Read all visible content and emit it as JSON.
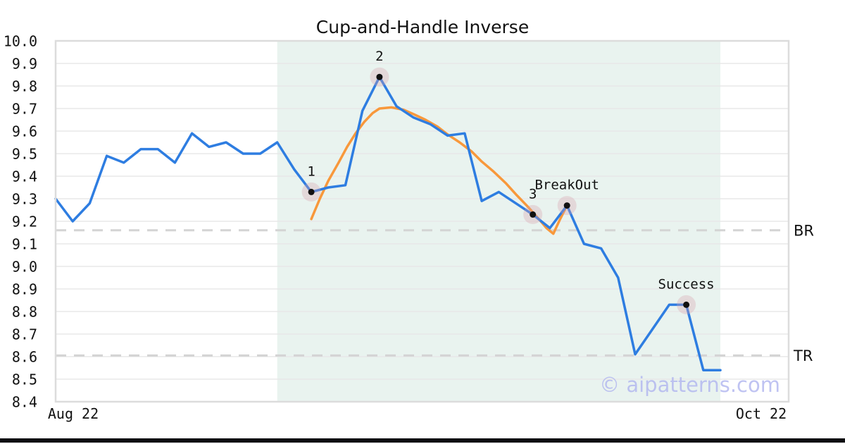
{
  "title": "Cup-and-Handle Inverse",
  "watermark": "© aipatterns.com",
  "chart_data": {
    "type": "line",
    "title": "Cup-and-Handle Inverse",
    "ylim": [
      8.4,
      10.0
    ],
    "y_tick_step": 0.1,
    "y_tick_labels": [
      "10.0",
      "9.9",
      "9.8",
      "9.7",
      "9.6",
      "9.5",
      "9.4",
      "9.3",
      "9.2",
      "9.1",
      "9.0",
      "8.9",
      "8.8",
      "8.7",
      "8.6",
      "8.5",
      "8.4"
    ],
    "x_tick_labels": [
      "Aug 22",
      "Oct 22"
    ],
    "grid": true,
    "legend": false,
    "series": [
      {
        "name": "price",
        "type": "line",
        "color": "#2e7de1",
        "values": [
          9.3,
          9.2,
          9.28,
          9.49,
          9.46,
          9.52,
          9.52,
          9.46,
          9.59,
          9.53,
          9.55,
          9.5,
          9.5,
          9.55,
          9.43,
          9.33,
          9.35,
          9.36,
          9.69,
          9.84,
          9.71,
          9.66,
          9.63,
          9.58,
          9.59,
          9.29,
          9.33,
          9.28,
          9.23,
          9.17,
          9.27,
          9.1,
          9.08,
          8.95,
          8.61,
          8.72,
          8.83,
          8.83,
          8.54,
          8.54
        ]
      },
      {
        "name": "pattern",
        "type": "line",
        "color": "#f8983b",
        "points": [
          [
            15.0,
            9.21
          ],
          [
            15.5,
            9.3
          ],
          [
            16.0,
            9.38
          ],
          [
            16.6,
            9.46
          ],
          [
            17.1,
            9.53
          ],
          [
            17.6,
            9.59
          ],
          [
            18.1,
            9.64
          ],
          [
            18.6,
            9.68
          ],
          [
            19.0,
            9.7
          ],
          [
            19.7,
            9.705
          ],
          [
            20.4,
            9.695
          ],
          [
            21.0,
            9.675
          ],
          [
            21.7,
            9.65
          ],
          [
            22.4,
            9.62
          ],
          [
            23.0,
            9.585
          ],
          [
            23.7,
            9.55
          ],
          [
            24.4,
            9.51
          ],
          [
            25.0,
            9.465
          ],
          [
            25.7,
            9.42
          ],
          [
            26.4,
            9.37
          ],
          [
            27.0,
            9.32
          ],
          [
            27.7,
            9.265
          ],
          [
            28.35,
            9.21
          ],
          [
            28.8,
            9.17
          ],
          [
            29.2,
            9.145
          ],
          [
            29.6,
            9.21
          ],
          [
            30.0,
            9.27
          ]
        ]
      }
    ],
    "levels": [
      {
        "label": "BR",
        "value": 9.16
      },
      {
        "label": "TR",
        "value": 8.605
      }
    ],
    "annotations": [
      {
        "label": "1",
        "index": 15,
        "value": 9.33
      },
      {
        "label": "2",
        "index": 19,
        "value": 9.84
      },
      {
        "label": "3",
        "index": 28,
        "value": 9.23
      },
      {
        "label": "BreakOut",
        "index": 30,
        "value": 9.27
      },
      {
        "label": "Success",
        "index": 37,
        "value": 8.83
      }
    ],
    "shaded_region": {
      "start_index": 13,
      "end_index": 39,
      "color": "#e9f3ef"
    }
  },
  "colors": {
    "price_line": "#2e7de1",
    "pattern_line": "#f8983b",
    "region": "#e9f3ef",
    "grid": "#e8e8e8",
    "border": "#dcdcdc",
    "level_dash": "#d4d4d4",
    "marker_dot": "#111111",
    "marker_halo": "#d9a0ae",
    "watermark": "#b4b9f0",
    "text": "#111111",
    "bottom_bar": "#0a0a10"
  }
}
